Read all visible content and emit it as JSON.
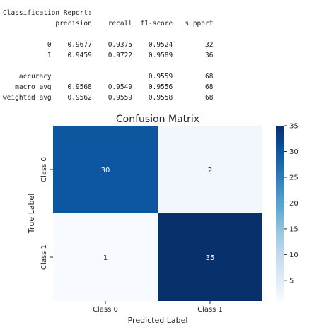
{
  "report": {
    "title": "Classification Report:",
    "columns": [
      "precision",
      "recall",
      "f1-score",
      "support"
    ],
    "rows": [
      {
        "label": "0",
        "precision": "0.9677",
        "recall": "0.9375",
        "f1": "0.9524",
        "support": "32"
      },
      {
        "label": "1",
        "precision": "0.9459",
        "recall": "0.9722",
        "f1": "0.9589",
        "support": "36"
      }
    ],
    "summary": [
      {
        "label": "accuracy",
        "precision": "",
        "recall": "",
        "f1": "0.9559",
        "support": "68"
      },
      {
        "label": "macro avg",
        "precision": "0.9568",
        "recall": "0.9549",
        "f1": "0.9556",
        "support": "68"
      },
      {
        "label": "weighted avg",
        "precision": "0.9562",
        "recall": "0.9559",
        "f1": "0.9558",
        "support": "68"
      }
    ]
  },
  "chart_data": {
    "type": "heatmap",
    "title": "Confusion Matrix",
    "xlabel": "Predicted Label",
    "ylabel": "True Label",
    "x_categories": [
      "Class 0",
      "Class 1"
    ],
    "y_categories": [
      "Class 0",
      "Class 1"
    ],
    "values": [
      [
        30,
        2
      ],
      [
        1,
        35
      ]
    ],
    "colormap": "Blues",
    "color_range": [
      1,
      35
    ],
    "colorbar_ticks": [
      5,
      10,
      15,
      20,
      25,
      30,
      35
    ],
    "colors": {
      "min": "#f7fbff",
      "max": "#08306b",
      "light_text": "#ffffff",
      "dark_text": "#262626"
    },
    "grid": false,
    "colorbar": "right"
  }
}
